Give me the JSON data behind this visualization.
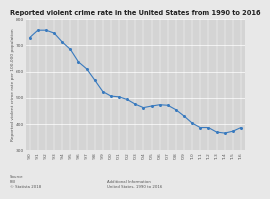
{
  "title": "Reported violent crime rate in the United States from 1990 to 2016",
  "ylabel": "Reported violent crime rate per 100,000 population",
  "background_color": "#e8e8e8",
  "plot_bg_color": "#d4d4d4",
  "line_color": "#3a7bbf",
  "marker_color": "#3a7bbf",
  "years": [
    1990,
    1991,
    1992,
    1993,
    1994,
    1995,
    1996,
    1997,
    1998,
    1999,
    2000,
    2001,
    2002,
    2003,
    2004,
    2005,
    2006,
    2007,
    2008,
    2009,
    2010,
    2011,
    2012,
    2013,
    2014,
    2015,
    2016
  ],
  "values": [
    730,
    758,
    758,
    747,
    713,
    685,
    637,
    611,
    568,
    524,
    507,
    504,
    494,
    476,
    463,
    469,
    474,
    472,
    455,
    431,
    404,
    387,
    387,
    370,
    366,
    373,
    387
  ],
  "ylim": [
    300,
    800
  ],
  "yticks": [
    300,
    400,
    500,
    600,
    700,
    800
  ],
  "source_text": "Source\nFBI\n© Statista 2018",
  "additional_text": "Additional Information\nUnited States, 1990 to 2016",
  "title_fontsize": 4.8,
  "ylabel_fontsize": 3.2,
  "tick_fontsize": 3.2
}
